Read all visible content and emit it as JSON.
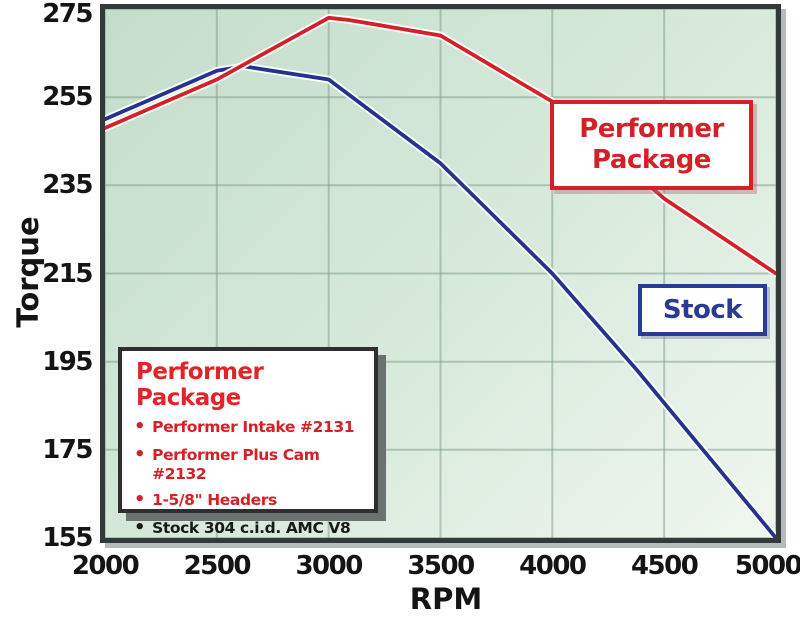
{
  "chart": {
    "background": "#ffffff",
    "plot_bg_from": "#c4ddcb",
    "plot_bg_to": "#f0f7f0",
    "grid_color": "rgba(125,155,135,0.5)",
    "frame_color": "#333a3c"
  },
  "chart_data": {
    "type": "line",
    "title": "",
    "xlabel": "RPM",
    "ylabel": "Torque",
    "xlim": [
      2000,
      5000
    ],
    "ylim": [
      155,
      275
    ],
    "x_ticks": [
      2000,
      2500,
      3000,
      3500,
      4000,
      4500,
      5000
    ],
    "y_ticks": [
      155,
      175,
      195,
      215,
      235,
      255,
      275
    ],
    "grid": true,
    "legend_position": "on-chart callout labels",
    "series": [
      {
        "name": "Stock",
        "color": "#24348e",
        "categories": [
          2000,
          2500,
          3000,
          3500,
          4000,
          4500,
          5000
        ],
        "values": [
          250,
          261,
          259,
          240,
          215,
          187,
          155
        ],
        "points": [
          [
            2000,
            250
          ],
          [
            2500,
            261
          ],
          [
            2620,
            262
          ],
          [
            3000,
            259
          ],
          [
            3500,
            240
          ],
          [
            4000,
            215
          ],
          [
            4380,
            193
          ],
          [
            5000,
            155
          ]
        ]
      },
      {
        "name": "Performer Package",
        "color": "#d42127",
        "categories": [
          2000,
          2500,
          3000,
          3500,
          4000,
          4500,
          5000
        ],
        "values": [
          248,
          259,
          273,
          269,
          254,
          232,
          215
        ],
        "points": [
          [
            2000,
            248
          ],
          [
            2500,
            259
          ],
          [
            3000,
            273
          ],
          [
            3090,
            272.5
          ],
          [
            3500,
            269
          ],
          [
            4000,
            254
          ],
          [
            4500,
            232
          ],
          [
            5000,
            215
          ]
        ]
      }
    ]
  },
  "annotations": {
    "performer_callout": {
      "line1": "Performer",
      "line2": "Package",
      "color": "#d42127"
    },
    "stock_callout": {
      "label": "Stock",
      "color": "#2a3b96"
    }
  },
  "legend_box": {
    "title": "Performer Package",
    "title_color": "#e02428",
    "items": [
      {
        "text": "Performer Intake #2131",
        "color": "#d42127"
      },
      {
        "text": "Performer Plus Cam #2132",
        "color": "#d42127"
      },
      {
        "text": "1-5/8\" Headers",
        "color": "#d42127"
      },
      {
        "text": "Stock 304 c.i.d. AMC V8",
        "color": "#1a1a1a"
      }
    ]
  }
}
